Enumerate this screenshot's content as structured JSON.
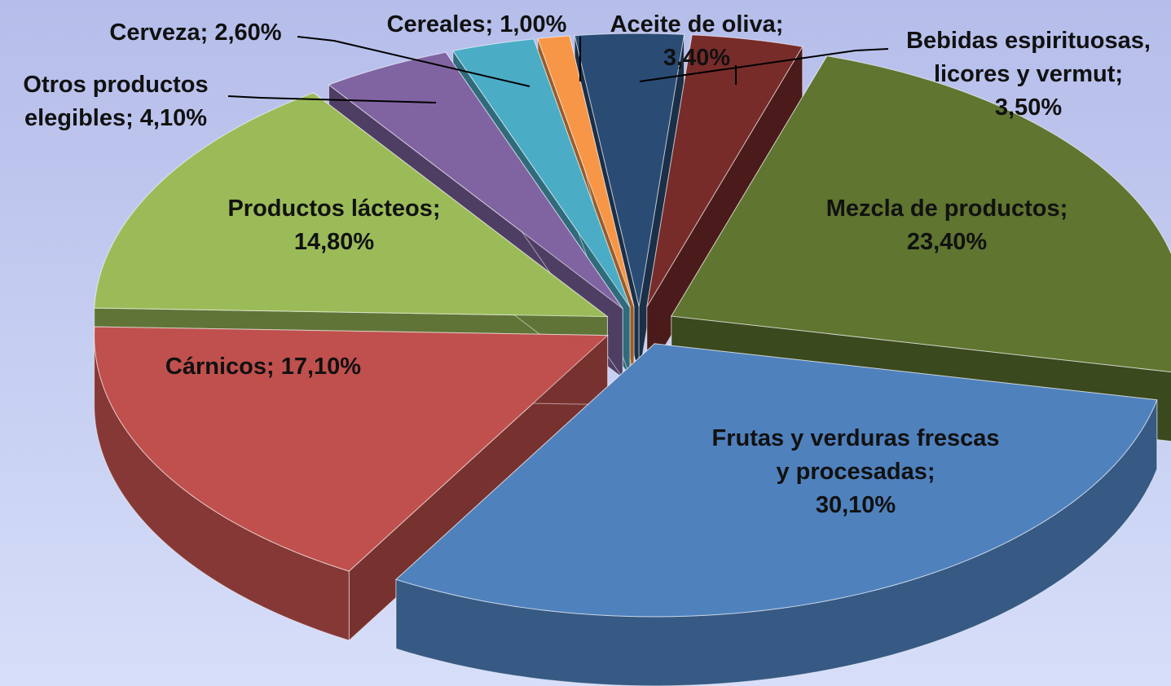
{
  "chart_data": {
    "type": "pie",
    "categories": [
      "Aceite de oliva",
      "Bebidas espirituosas, licores y vermut",
      "Mezcla de productos",
      "Frutas y verduras frescas y procesadas",
      "Cárnicos",
      "Productos lácteos",
      "Otros productos elegibles",
      "Cerveza",
      "Cereales"
    ],
    "values": [
      3.4,
      3.5,
      23.4,
      30.1,
      17.1,
      14.8,
      4.1,
      2.6,
      1.0
    ],
    "value_labels": [
      "3,40%",
      "3,50%",
      "23,40%",
      "30,10%",
      "17,10%",
      "14,80%",
      "4,10%",
      "2,60%",
      "1,00%"
    ],
    "colors": [
      "#2a4b74",
      "#772c2a",
      "#5f7530",
      "#4f81bd",
      "#c0504d",
      "#9bbb59",
      "#8064a2",
      "#4bacc6",
      "#f79646"
    ]
  }
}
